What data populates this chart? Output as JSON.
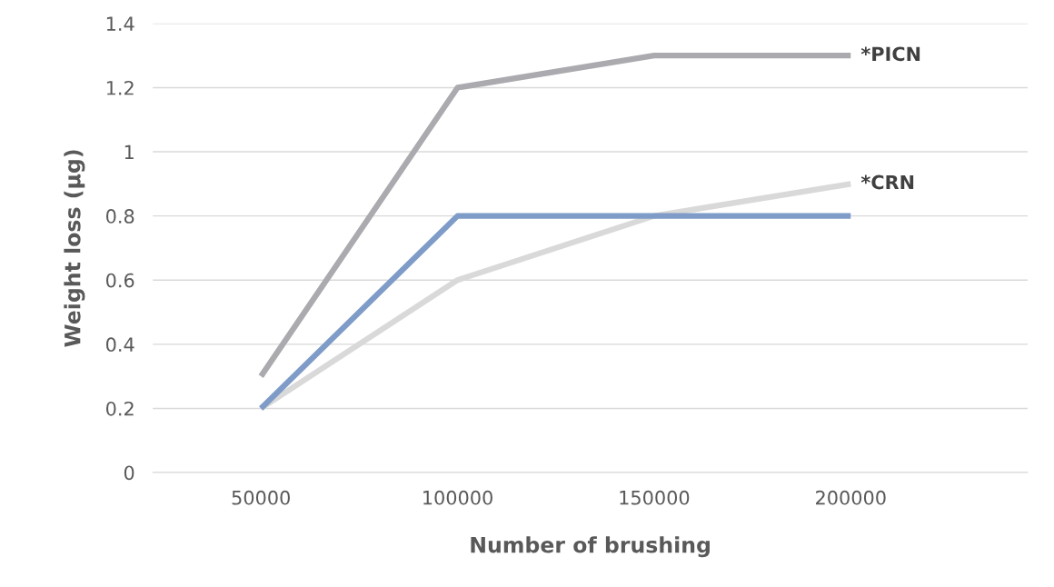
{
  "chart_data": {
    "type": "line",
    "xlabel": "Number of brushing",
    "ylabel": "Weight loss (µg)",
    "categories": [
      "50000",
      "100000",
      "150000",
      "200000"
    ],
    "series": [
      {
        "name": "*PICN",
        "color": "#aaaaaf",
        "values": [
          0.3,
          1.2,
          1.3,
          1.3
        ]
      },
      {
        "name": "*CRN",
        "color": "#d9d9d9",
        "values": [
          0.2,
          0.6,
          0.8,
          0.9
        ]
      },
      {
        "color": "#7f9cc8",
        "values": [
          0.2,
          0.8,
          0.8,
          0.8
        ]
      }
    ],
    "ylim": [
      0,
      1.4
    ],
    "yticks": [
      0,
      0.2,
      0.4,
      0.6,
      0.8,
      1,
      1.2,
      1.4
    ],
    "grid": "y",
    "legend": false,
    "marker": "none",
    "line_style": "solid"
  }
}
